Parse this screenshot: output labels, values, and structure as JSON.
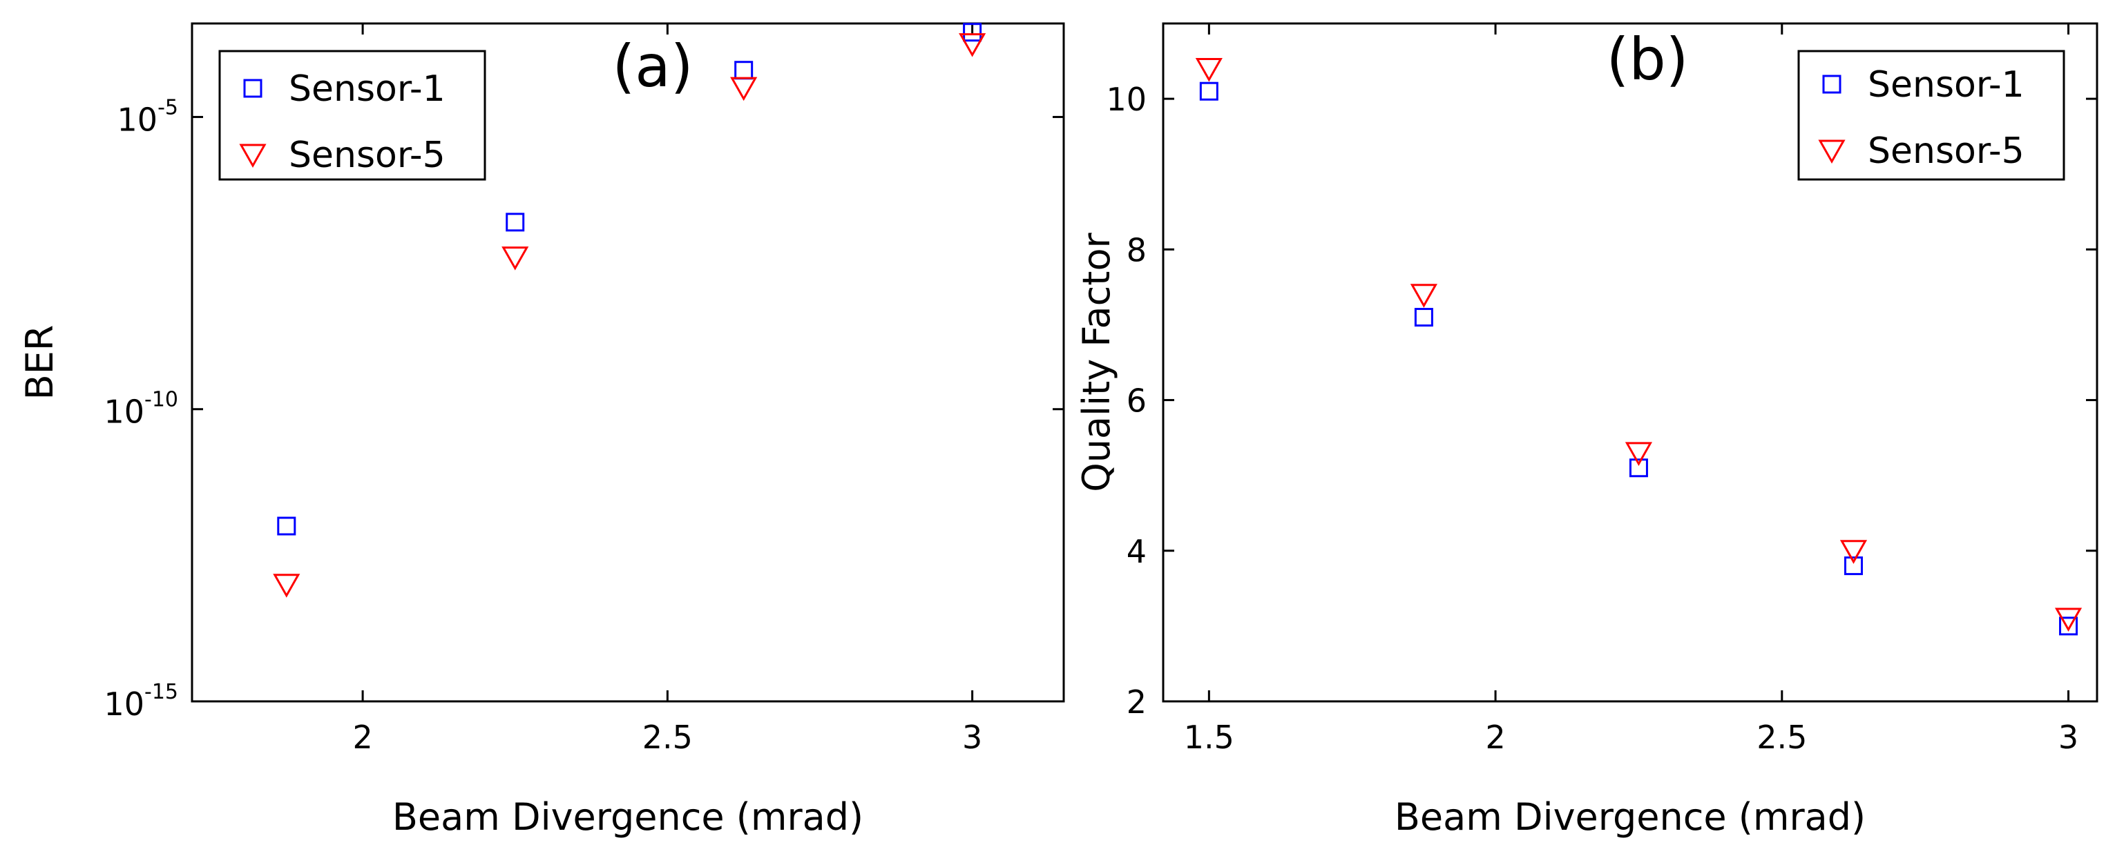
{
  "chart_data": [
    {
      "type": "scatter",
      "panel_label": "(a)",
      "xlabel": "Beam Divergence (mrad)",
      "ylabel": "BER",
      "yscale": "log",
      "xlim": [
        1.72,
        3.15
      ],
      "ylim_exponent": [
        -15,
        -3.4
      ],
      "xticks": [
        2,
        2.5,
        3
      ],
      "xtick_labels": [
        "2",
        "2.5",
        "3"
      ],
      "yticks": [
        -15,
        -10,
        -5
      ],
      "ytick_base": "10",
      "ytick_exponents": [
        "-15",
        "-10",
        "-5"
      ],
      "legend_position": "top-left",
      "series": [
        {
          "name": "Sensor-1",
          "marker": "square",
          "color": "#0000ff",
          "x": [
            1.875,
            2.25,
            2.625,
            3.0
          ],
          "y_exponent": [
            -12.0,
            -6.8,
            -4.2,
            -3.55
          ]
        },
        {
          "name": "Sensor-5",
          "marker": "triangle-down",
          "color": "#ff0000",
          "x": [
            1.875,
            2.25,
            2.625,
            3.0
          ],
          "y_exponent": [
            -13.0,
            -7.4,
            -4.5,
            -3.75
          ]
        }
      ]
    },
    {
      "type": "scatter",
      "panel_label": "(b)",
      "xlabel": "Beam Divergence (mrad)",
      "ylabel": "Quality Factor",
      "xlim": [
        1.42,
        3.05
      ],
      "ylim": [
        2,
        11
      ],
      "xticks": [
        1.5,
        2,
        2.5,
        3
      ],
      "xtick_labels": [
        "1.5",
        "2",
        "2.5",
        "3"
      ],
      "yticks": [
        2,
        4,
        6,
        8,
        10
      ],
      "ytick_labels": [
        "2",
        "4",
        "6",
        "8",
        "10"
      ],
      "legend_position": "top-right",
      "series": [
        {
          "name": "Sensor-1",
          "marker": "square",
          "color": "#0000ff",
          "x": [
            1.5,
            1.875,
            2.25,
            2.625,
            3.0
          ],
          "y": [
            10.1,
            7.1,
            5.1,
            3.8,
            3.0
          ]
        },
        {
          "name": "Sensor-5",
          "marker": "triangle-down",
          "color": "#ff0000",
          "x": [
            1.5,
            1.875,
            2.25,
            2.625,
            3.0
          ],
          "y": [
            10.4,
            7.4,
            5.3,
            4.0,
            3.1
          ]
        }
      ]
    }
  ]
}
